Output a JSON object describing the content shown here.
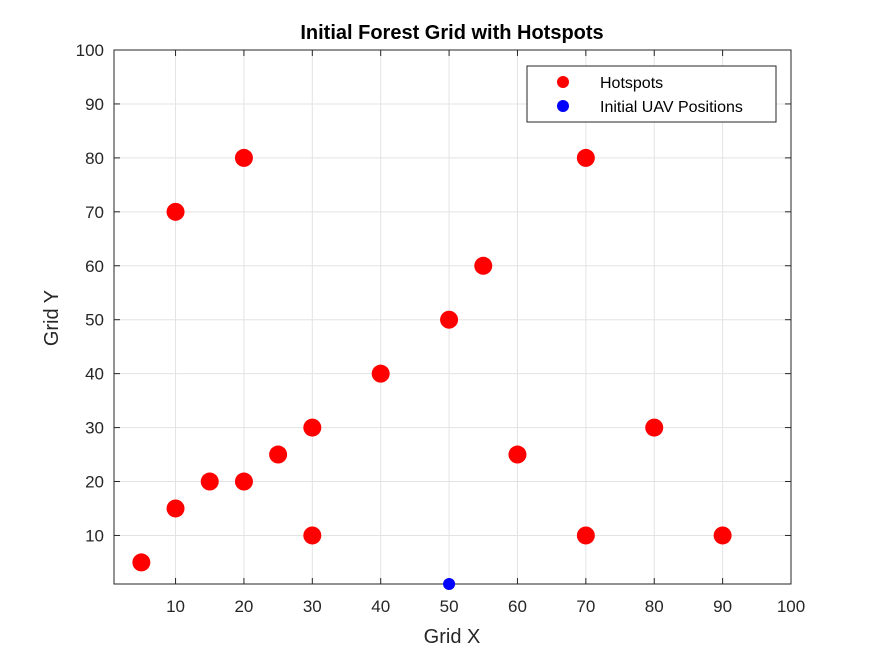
{
  "chart_data": {
    "type": "scatter",
    "title": "Initial Forest Grid with Hotspots",
    "xlabel": "Grid X",
    "ylabel": "Grid Y",
    "xlim": [
      1,
      100
    ],
    "ylim": [
      1,
      100
    ],
    "xticks": [
      10,
      20,
      30,
      40,
      50,
      60,
      70,
      80,
      90,
      100
    ],
    "yticks": [
      10,
      20,
      30,
      40,
      50,
      60,
      70,
      80,
      90,
      100
    ],
    "grid": true,
    "legend_position": "top-right",
    "series": [
      {
        "name": "Hotspots",
        "color": "#ff0000",
        "marker": "circle-large",
        "points": [
          {
            "x": 5,
            "y": 5
          },
          {
            "x": 10,
            "y": 15
          },
          {
            "x": 10,
            "y": 70
          },
          {
            "x": 15,
            "y": 20
          },
          {
            "x": 20,
            "y": 20
          },
          {
            "x": 20,
            "y": 80
          },
          {
            "x": 25,
            "y": 25
          },
          {
            "x": 30,
            "y": 10
          },
          {
            "x": 30,
            "y": 30
          },
          {
            "x": 40,
            "y": 40
          },
          {
            "x": 50,
            "y": 50
          },
          {
            "x": 55,
            "y": 60
          },
          {
            "x": 60,
            "y": 25
          },
          {
            "x": 70,
            "y": 10
          },
          {
            "x": 70,
            "y": 80
          },
          {
            "x": 80,
            "y": 30
          },
          {
            "x": 90,
            "y": 10
          }
        ]
      },
      {
        "name": "Initial UAV Positions",
        "color": "#0000ff",
        "marker": "circle-small",
        "points": [
          {
            "x": 50,
            "y": 1
          }
        ]
      }
    ]
  }
}
